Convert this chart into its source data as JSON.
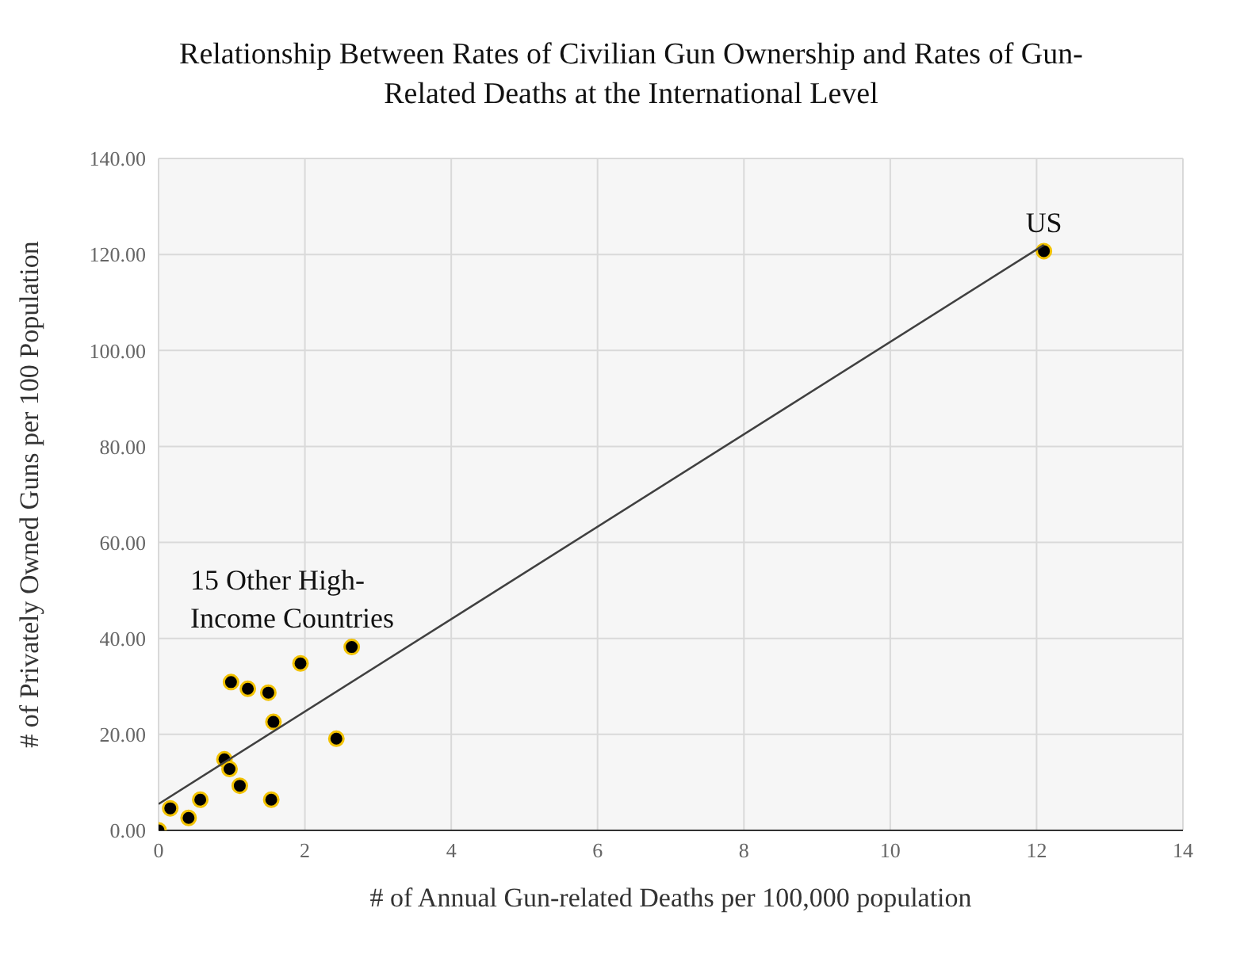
{
  "chart_data": {
    "type": "scatter",
    "title": "Relationship Between Rates of Civilian Gun Ownership and Rates of Gun-Related Deaths at the International Level",
    "xlabel": "# of Annual Gun-related Deaths per 100,000 population",
    "ylabel": "# of Privately Owned Guns per 100 Population",
    "annotations": [
      {
        "text": "US",
        "x": 12.1,
        "y": 120.7
      },
      "15 Other High-Income Countries"
    ],
    "series": [
      {
        "color": "#000000",
        "marker": "circle",
        "x": [
          0,
          0.16,
          0.41,
          0.57,
          0.9,
          0.97,
          1.11,
          0.99,
          1.22,
          1.5,
          1.57,
          1.54,
          1.94,
          2.64,
          2.43,
          12.1
        ],
        "values": [
          0,
          4.6,
          2.6,
          6.4,
          14.8,
          12.8,
          9.3,
          30.9,
          29.5,
          28.7,
          22.6,
          6.4,
          34.8,
          38.2,
          19.1,
          120.7
        ]
      },
      {
        "type": "line",
        "color": "#404040",
        "x": [
          0,
          12.1
        ],
        "values": [
          5.5,
          122
        ]
      }
    ],
    "xlim": [
      0,
      14
    ],
    "xticks": [
      0,
      2,
      4,
      6,
      8,
      10,
      12,
      14
    ],
    "ylim": [
      0,
      140
    ],
    "yticks": [
      {
        "value": 0,
        "label": "0.00"
      },
      {
        "value": 20,
        "label": "20.00"
      },
      {
        "value": 40,
        "label": "40.00"
      },
      {
        "value": 60,
        "label": "60.00"
      },
      {
        "value": 80,
        "label": "80.00"
      },
      {
        "value": 100,
        "label": "100.00"
      },
      {
        "value": 120,
        "label": "120.00"
      },
      {
        "value": 140,
        "label": "140.00"
      }
    ],
    "grid": true,
    "legend": false,
    "line_style": "solid"
  }
}
